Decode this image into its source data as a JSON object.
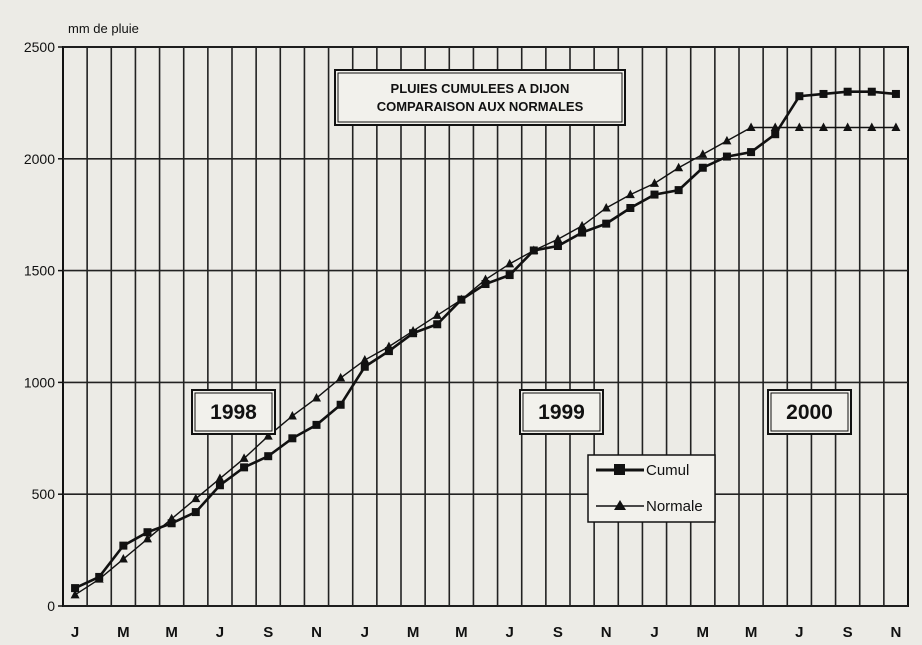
{
  "chart_data": {
    "type": "line",
    "title": "PLUIES CUMULEES A DIJON",
    "subtitle": "COMPARAISON AUX NORMALES",
    "xlabel": "",
    "ylabel": "mm de pluie",
    "ylim": [
      0,
      2500
    ],
    "yticks": [
      0,
      500,
      1000,
      1500,
      2000,
      2500
    ],
    "grid": true,
    "legend_position": "lower-right",
    "month_labels": [
      "J",
      "M",
      "M",
      "J",
      "S",
      "N",
      "J",
      "M",
      "M",
      "J",
      "S",
      "N",
      "J",
      "M",
      "M",
      "J",
      "S",
      "N"
    ],
    "year_labels": [
      "1998",
      "1999",
      "2000"
    ],
    "x": [
      "1998-01",
      "1998-02",
      "1998-03",
      "1998-04",
      "1998-05",
      "1998-06",
      "1998-07",
      "1998-08",
      "1998-09",
      "1998-10",
      "1998-11",
      "1998-12",
      "1999-01",
      "1999-02",
      "1999-03",
      "1999-04",
      "1999-05",
      "1999-06",
      "1999-07",
      "1999-08",
      "1999-09",
      "1999-10",
      "1999-11",
      "1999-12",
      "2000-01",
      "2000-02",
      "2000-03",
      "2000-04",
      "2000-05",
      "2000-06",
      "2000-07",
      "2000-08",
      "2000-09",
      "2000-10",
      "2000-11"
    ],
    "series": [
      {
        "name": "Cumul",
        "marker": "square",
        "values": [
          80,
          130,
          270,
          330,
          370,
          420,
          540,
          620,
          670,
          750,
          810,
          900,
          1070,
          1140,
          1220,
          1260,
          1370,
          1440,
          1480,
          1590,
          1610,
          1670,
          1710,
          1780,
          1840,
          1860,
          1960,
          2010,
          2030,
          2110,
          2280,
          2290,
          2300,
          2300,
          2290
        ]
      },
      {
        "name": "Normale",
        "marker": "triangle",
        "values": [
          50,
          120,
          210,
          300,
          390,
          480,
          570,
          660,
          760,
          850,
          930,
          1020,
          1100,
          1160,
          1230,
          1300,
          1370,
          1460,
          1530,
          1590,
          1640,
          1700,
          1780,
          1840,
          1890,
          1960,
          2020,
          2080,
          2140,
          2140,
          2140,
          2140,
          2140,
          2140,
          2140
        ]
      }
    ],
    "colors": {
      "background": "#ecebe6",
      "line": "#111111",
      "box": "#f2f1ec"
    }
  }
}
